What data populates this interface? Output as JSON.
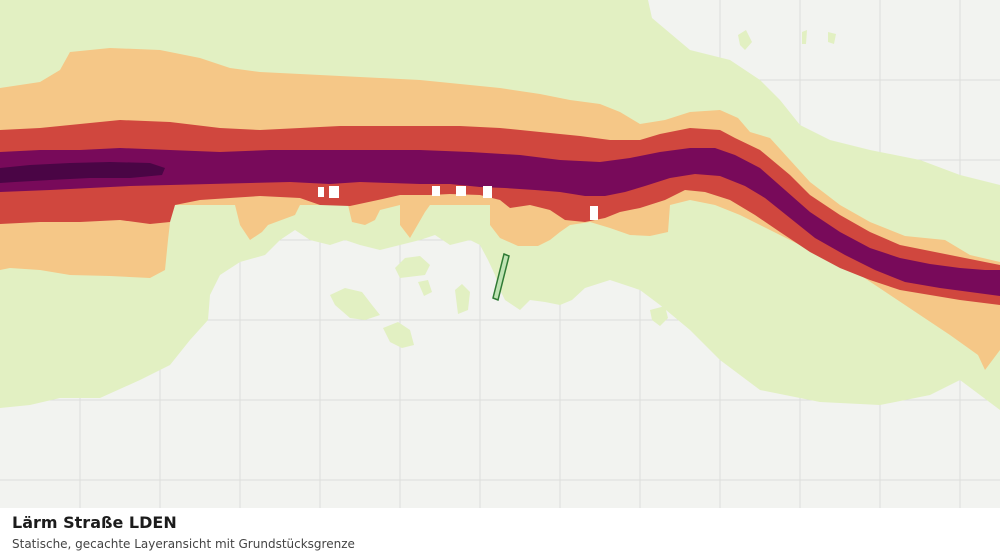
{
  "map": {
    "layer": "Lärm Straße LDEN",
    "colors": {
      "background": "#f2f3f0",
      "grid": "#dcdedb",
      "green_zone": "#e2f0c2",
      "level_1": "#f5c787",
      "level_2": "#d0473e",
      "level_3": "#780a5a",
      "level_4": "#4a0545",
      "parcel_outline": "#2f7a34",
      "parcel_fill": "#bfe3b3"
    }
  },
  "caption": {
    "title": "Lärm Straße LDEN",
    "subtitle": "Statische, gecachte Layeransicht mit Grundstücksgrenze"
  }
}
